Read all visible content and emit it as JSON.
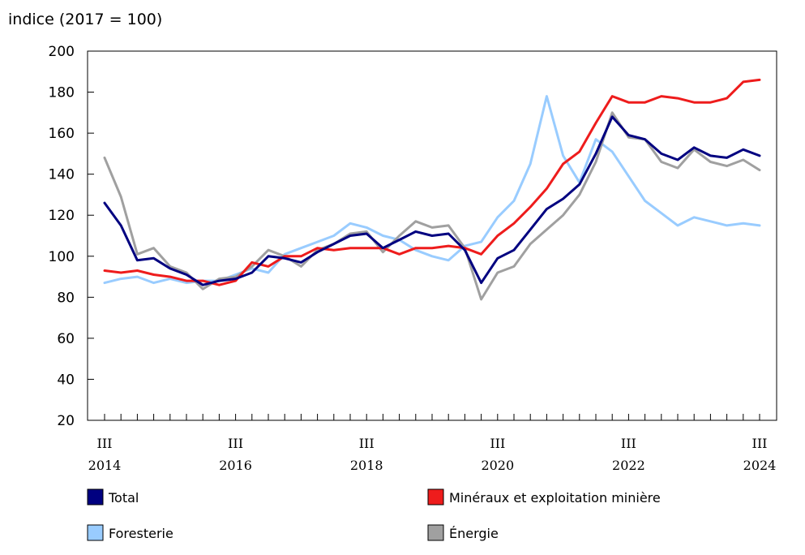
{
  "chart_data": {
    "type": "line",
    "title": "",
    "ylabel": "indice (2017 = 100)",
    "xlabel": "",
    "ylim": [
      20,
      200
    ],
    "yticks": [
      20,
      40,
      60,
      80,
      100,
      120,
      140,
      160,
      180,
      200
    ],
    "grid": false,
    "legend_position": "bottom",
    "x": [
      "2014 T3",
      "2014 T4",
      "2015 T1",
      "2015 T2",
      "2015 T3",
      "2015 T4",
      "2016 T1",
      "2016 T2",
      "2016 T3",
      "2016 T4",
      "2017 T1",
      "2017 T2",
      "2017 T3",
      "2017 T4",
      "2018 T1",
      "2018 T2",
      "2018 T3",
      "2018 T4",
      "2019 T1",
      "2019 T2",
      "2019 T3",
      "2019 T4",
      "2020 T1",
      "2020 T2",
      "2020 T3",
      "2020 T4",
      "2021 T1",
      "2021 T2",
      "2021 T3",
      "2021 T4",
      "2022 T1",
      "2022 T2",
      "2022 T3",
      "2022 T4",
      "2023 T1",
      "2023 T2",
      "2023 T3",
      "2023 T4",
      "2024 T1",
      "2024 T2",
      "2024 T3"
    ],
    "x_tick_labels": [
      {
        "quarter": "III",
        "year": "2014"
      },
      {
        "quarter": "III",
        "year": "2016"
      },
      {
        "quarter": "III",
        "year": "2018"
      },
      {
        "quarter": "III",
        "year": "2020"
      },
      {
        "quarter": "III",
        "year": "2022"
      },
      {
        "quarter": "III",
        "year": "2024"
      }
    ],
    "series": [
      {
        "name": "Total",
        "color": "#000080",
        "values": [
          126,
          115,
          98,
          99,
          94,
          91,
          86,
          88,
          89,
          92,
          100,
          99,
          97,
          102,
          106,
          110,
          111,
          104,
          108,
          112,
          110,
          111,
          103,
          87,
          99,
          103,
          113,
          123,
          128,
          135,
          150,
          168,
          159,
          157,
          150,
          147,
          153,
          149,
          148,
          152,
          149
        ]
      },
      {
        "name": "Minéraux et exploitation minière",
        "color": "#ee1c1c",
        "values": [
          93,
          92,
          93,
          91,
          90,
          88,
          88,
          86,
          88,
          97,
          95,
          100,
          100,
          104,
          103,
          104,
          104,
          104,
          101,
          104,
          104,
          105,
          104,
          101,
          110,
          116,
          124,
          133,
          145,
          151,
          165,
          178,
          175,
          175,
          178,
          177,
          175,
          175,
          177,
          185,
          186
        ]
      },
      {
        "name": "Foresterie",
        "color": "#99ccff",
        "values": [
          87,
          89,
          90,
          87,
          89,
          87,
          88,
          88,
          91,
          94,
          92,
          101,
          104,
          107,
          110,
          116,
          114,
          110,
          108,
          103,
          100,
          98,
          105,
          107,
          119,
          127,
          145,
          178,
          149,
          136,
          157,
          151,
          139,
          127,
          121,
          115,
          119,
          117,
          115,
          116,
          115
        ]
      },
      {
        "name": "Énergie",
        "color": "#a0a0a0",
        "values": [
          148,
          129,
          101,
          104,
          95,
          92,
          84,
          89,
          90,
          95,
          103,
          100,
          95,
          103,
          106,
          111,
          112,
          102,
          110,
          117,
          114,
          115,
          104,
          79,
          92,
          95,
          106,
          113,
          120,
          130,
          146,
          170,
          158,
          157,
          146,
          143,
          152,
          146,
          144,
          147,
          142
        ]
      }
    ]
  }
}
